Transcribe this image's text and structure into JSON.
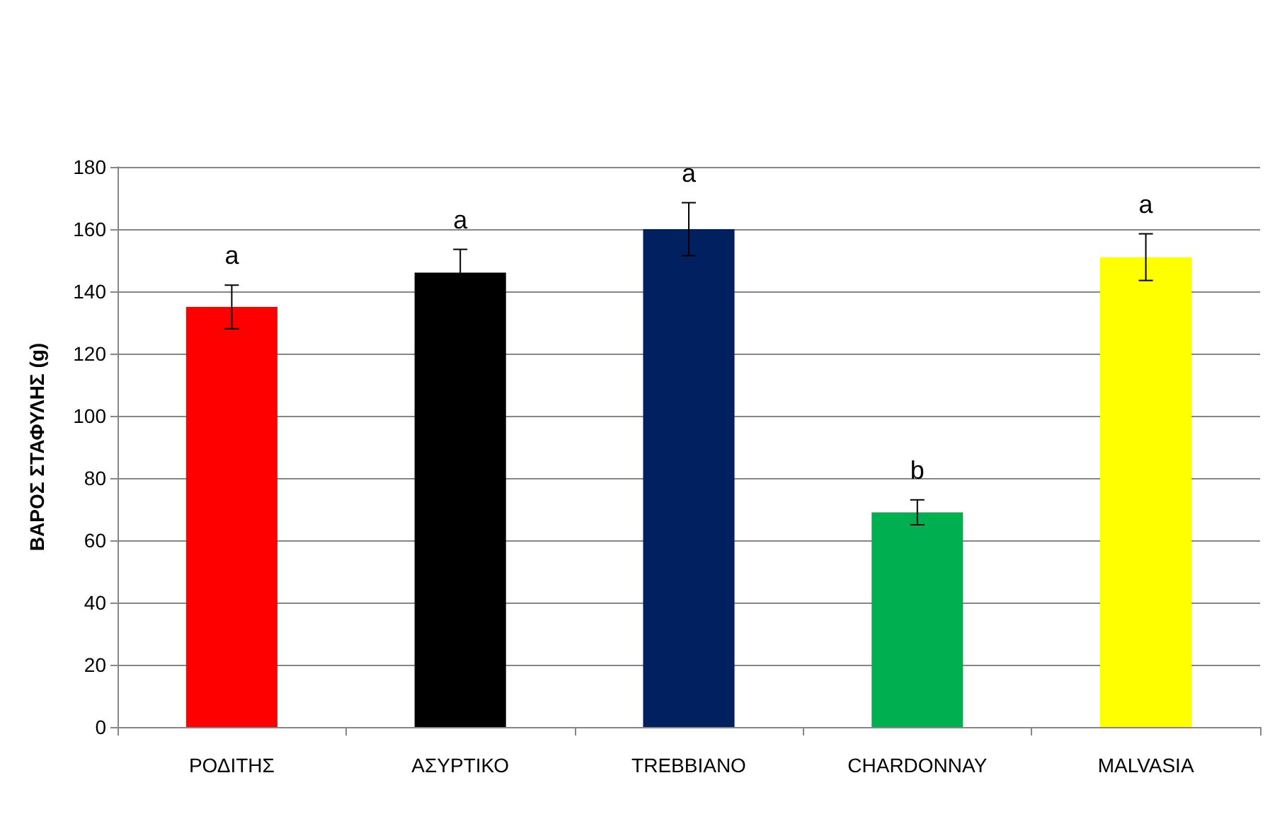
{
  "chart_data": {
    "type": "bar",
    "ylabel": "ΒΑΡΟΣ ΣΤΑΦΥΛΗΣ (g)",
    "categories": [
      "ΡΟΔΙΤΗΣ",
      "ΑΣΥΡΤΙΚΟ",
      "TREBBIANO",
      "CHARDONNAY",
      "MALVASIA"
    ],
    "values": [
      135,
      146,
      160,
      69,
      151
    ],
    "errors": [
      7,
      7.5,
      8.5,
      4,
      7.5
    ],
    "colors": [
      "#ff0000",
      "#000000",
      "#002060",
      "#00b050",
      "#ffff00"
    ],
    "ylim": [
      0,
      180
    ],
    "yticks": [
      0,
      20,
      40,
      60,
      80,
      100,
      120,
      140,
      160,
      180
    ],
    "grid": "y",
    "annotations": [
      "a",
      "a",
      "a",
      "b",
      "a"
    ]
  }
}
